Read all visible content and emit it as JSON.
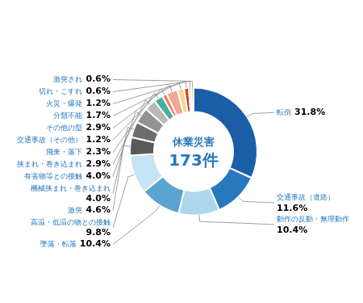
{
  "chart_data": {
    "type": "doughnut",
    "title": "休業災害",
    "subtitle": "173件",
    "categories": [
      "転倒",
      "交通事故（道路）",
      "動作の反動・無理動作",
      "墜落・転落",
      "高温・低温の物との接触",
      "激突",
      "機械挟まれ・巻き込まれ",
      "有害物等との接触",
      "挟まれ・巻き込まれ",
      "飛来・落下",
      "交通事故（その他）",
      "その他の型",
      "分類不能",
      "火災・爆発",
      "切れ・こすれ",
      "激突され"
    ],
    "values": [
      31.8,
      11.6,
      10.4,
      10.4,
      9.8,
      4.6,
      4.0,
      4.0,
      2.9,
      2.3,
      1.2,
      2.9,
      1.7,
      1.2,
      0.6,
      0.6
    ],
    "value_labels": [
      "31.8%",
      "11.6%",
      "10.4%",
      "10.4%",
      "9.8%",
      "4.6%",
      "4.0%",
      "4.0%",
      "2.9%",
      "2.3%",
      "1.2%",
      "2.9%",
      "1.7%",
      "1.2%",
      "0.6%",
      "0.6%"
    ],
    "colors": [
      "#1A5EA8",
      "#2878BE",
      "#AED6F0",
      "#5BA3D0",
      "#C5E3F5",
      "#595959",
      "#6D6D6D",
      "#939393",
      "#B8B8B8",
      "#45B09E",
      "#E87E5C",
      "#F0A898",
      "#F5D88A",
      "#D63B3B",
      "#F0A030",
      "#F5C842"
    ],
    "data_labels": true
  }
}
